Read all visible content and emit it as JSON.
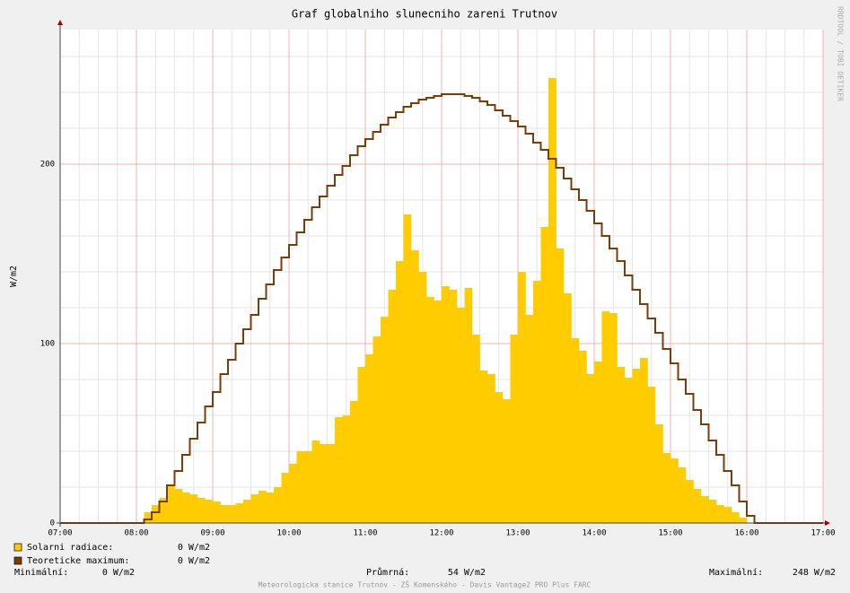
{
  "chart_data": {
    "type": "bar",
    "title": "Graf globalniho slunecniho zareni Trutnov",
    "y_label": "W/m2",
    "watermark": "RRDTOOL / TOBI OETIKER",
    "footer": "Meteorologicka stanice Trutnov - ZŠ Komenského - Davis Vantage2 PRO Plus FARC",
    "grid": true,
    "xlim": [
      "07:00",
      "17:00"
    ],
    "xticks": [
      "07:00",
      "08:00",
      "09:00",
      "10:00",
      "11:00",
      "12:00",
      "13:00",
      "14:00",
      "15:00",
      "16:00",
      "17:00"
    ],
    "ylim": [
      0,
      275
    ],
    "yticks": [
      0,
      100,
      200
    ],
    "x": [
      "07:00",
      "07:06",
      "07:12",
      "07:18",
      "07:24",
      "07:30",
      "07:36",
      "07:42",
      "07:48",
      "07:54",
      "08:00",
      "08:06",
      "08:12",
      "08:18",
      "08:24",
      "08:30",
      "08:36",
      "08:42",
      "08:48",
      "08:54",
      "09:00",
      "09:06",
      "09:12",
      "09:18",
      "09:24",
      "09:30",
      "09:36",
      "09:42",
      "09:48",
      "09:54",
      "10:00",
      "10:06",
      "10:12",
      "10:18",
      "10:24",
      "10:30",
      "10:36",
      "10:42",
      "10:48",
      "10:54",
      "11:00",
      "11:06",
      "11:12",
      "11:18",
      "11:24",
      "11:30",
      "11:36",
      "11:42",
      "11:48",
      "11:54",
      "12:00",
      "12:06",
      "12:12",
      "12:18",
      "12:24",
      "12:30",
      "12:36",
      "12:42",
      "12:48",
      "12:54",
      "13:00",
      "13:06",
      "13:12",
      "13:18",
      "13:24",
      "13:30",
      "13:36",
      "13:42",
      "13:48",
      "13:54",
      "14:00",
      "14:06",
      "14:12",
      "14:18",
      "14:24",
      "14:30",
      "14:36",
      "14:42",
      "14:48",
      "14:54",
      "15:00",
      "15:06",
      "15:12",
      "15:18",
      "15:24",
      "15:30",
      "15:36",
      "15:42",
      "15:48",
      "15:54",
      "16:00",
      "16:06",
      "16:12",
      "16:18",
      "16:24",
      "16:30",
      "16:36",
      "16:42",
      "16:48",
      "16:54"
    ],
    "series": [
      {
        "name": "Solarni radiace:",
        "type": "bar",
        "color": "#ffcc00",
        "current": "0 W/m2",
        "values": [
          0,
          0,
          0,
          0,
          0,
          0,
          0,
          0,
          0,
          0,
          0,
          6,
          10,
          14,
          21,
          19,
          17,
          16,
          14,
          13,
          12,
          10,
          10,
          11,
          13,
          16,
          18,
          17,
          20,
          28,
          33,
          40,
          40,
          46,
          44,
          44,
          59,
          60,
          68,
          87,
          94,
          104,
          115,
          130,
          146,
          172,
          152,
          140,
          126,
          124,
          132,
          130,
          120,
          131,
          105,
          85,
          83,
          73,
          69,
          105,
          140,
          116,
          135,
          165,
          248,
          153,
          128,
          103,
          96,
          83,
          90,
          118,
          117,
          87,
          81,
          86,
          92,
          76,
          55,
          39,
          36,
          31,
          24,
          19,
          15,
          13,
          10,
          9,
          6,
          3,
          0,
          0,
          0,
          0,
          0,
          0,
          0,
          0,
          0,
          0
        ]
      },
      {
        "name": "Teoreticke maximum:",
        "type": "step",
        "color": "#7a3d0a",
        "current": "0 W/m2",
        "values": [
          0,
          0,
          0,
          0,
          0,
          0,
          0,
          0,
          0,
          0,
          0,
          2,
          6,
          12,
          21,
          29,
          38,
          47,
          56,
          65,
          73,
          83,
          91,
          100,
          108,
          116,
          125,
          133,
          141,
          148,
          155,
          162,
          169,
          176,
          182,
          188,
          194,
          199,
          205,
          210,
          214,
          218,
          222,
          226,
          229,
          232,
          234,
          236,
          237,
          238,
          239,
          239,
          239,
          238,
          237,
          235,
          233,
          230,
          227,
          224,
          221,
          217,
          212,
          208,
          203,
          198,
          192,
          186,
          180,
          174,
          167,
          160,
          153,
          146,
          138,
          130,
          122,
          114,
          106,
          97,
          89,
          80,
          72,
          63,
          55,
          46,
          38,
          29,
          21,
          12,
          4,
          0,
          0,
          0,
          0,
          0,
          0,
          0,
          0,
          0
        ]
      }
    ],
    "stats": [
      {
        "label": "Minimální:",
        "value": "0 W/m2"
      },
      {
        "label": "Průmrná:",
        "value": "54 W/m2"
      },
      {
        "label": "Maximální:",
        "value": "248 W/m2"
      }
    ]
  }
}
